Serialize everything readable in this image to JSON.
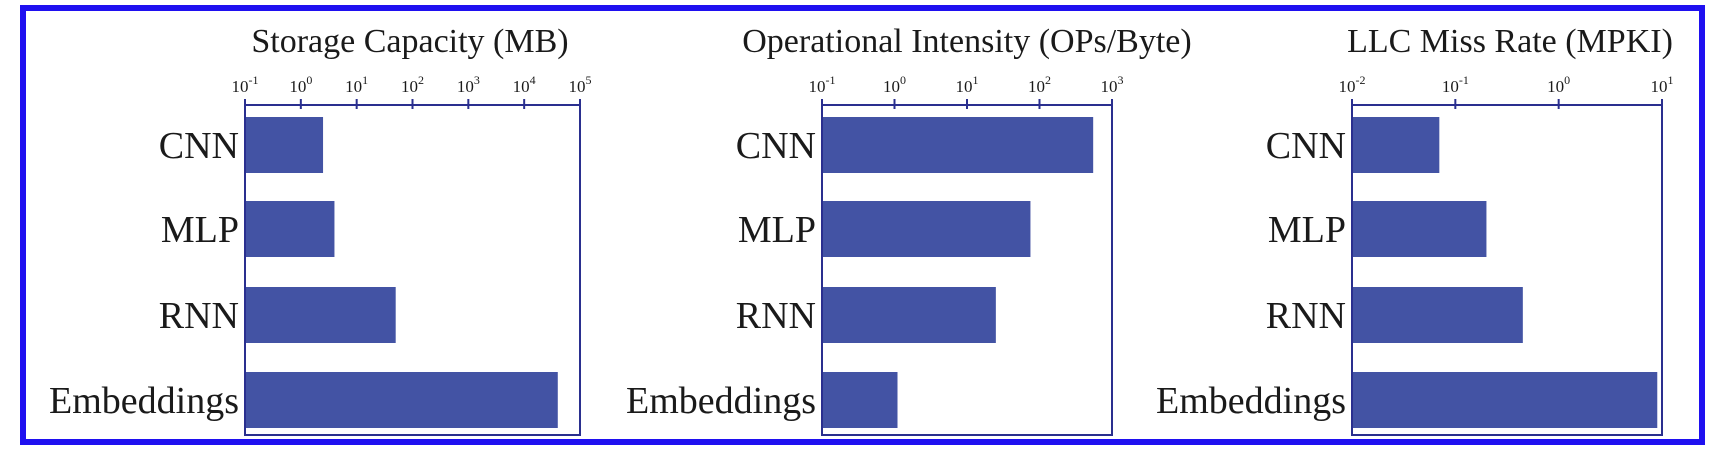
{
  "colors": {
    "frame": "#1f10f0",
    "bar": "#4353a4",
    "axes": "#2a2f8f"
  },
  "chart_data": [
    {
      "type": "bar",
      "orientation": "horizontal",
      "scale": "log",
      "title": "Storage Capacity (MB)",
      "categories": [
        "CNN",
        "MLP",
        "RNN",
        "Embeddings"
      ],
      "values": [
        2.5,
        4,
        50,
        40000
      ],
      "xlim": [
        0.1,
        100000
      ],
      "ticks": [
        {
          "base": "10",
          "exp": "-1",
          "value": 0.1
        },
        {
          "base": "10",
          "exp": "0",
          "value": 1
        },
        {
          "base": "10",
          "exp": "1",
          "value": 10
        },
        {
          "base": "10",
          "exp": "2",
          "value": 100
        },
        {
          "base": "10",
          "exp": "3",
          "value": 1000
        },
        {
          "base": "10",
          "exp": "4",
          "value": 10000
        },
        {
          "base": "10",
          "exp": "5",
          "value": 100000
        }
      ],
      "grid": false,
      "legend": "none"
    },
    {
      "type": "bar",
      "orientation": "horizontal",
      "scale": "log",
      "title": "Operational Intensity (OPs/Byte)",
      "categories": [
        "CNN",
        "MLP",
        "RNN",
        "Embeddings"
      ],
      "values": [
        550,
        75,
        25,
        1.1
      ],
      "xlim": [
        0.1,
        1000
      ],
      "ticks": [
        {
          "base": "10",
          "exp": "-1",
          "value": 0.1
        },
        {
          "base": "10",
          "exp": "0",
          "value": 1
        },
        {
          "base": "10",
          "exp": "1",
          "value": 10
        },
        {
          "base": "10",
          "exp": "2",
          "value": 100
        },
        {
          "base": "10",
          "exp": "3",
          "value": 1000
        }
      ],
      "grid": false,
      "legend": "none"
    },
    {
      "type": "bar",
      "orientation": "horizontal",
      "scale": "log",
      "title": "LLC Miss Rate (MPKI)",
      "categories": [
        "CNN",
        "MLP",
        "RNN",
        "Embeddings"
      ],
      "values": [
        0.07,
        0.2,
        0.45,
        9
      ],
      "xlim": [
        0.01,
        10
      ],
      "ticks": [
        {
          "base": "10",
          "exp": "-2",
          "value": 0.01
        },
        {
          "base": "10",
          "exp": "-1",
          "value": 0.1
        },
        {
          "base": "10",
          "exp": "0",
          "value": 1
        },
        {
          "base": "10",
          "exp": "1",
          "value": 10
        }
      ],
      "grid": false,
      "legend": "none"
    }
  ]
}
